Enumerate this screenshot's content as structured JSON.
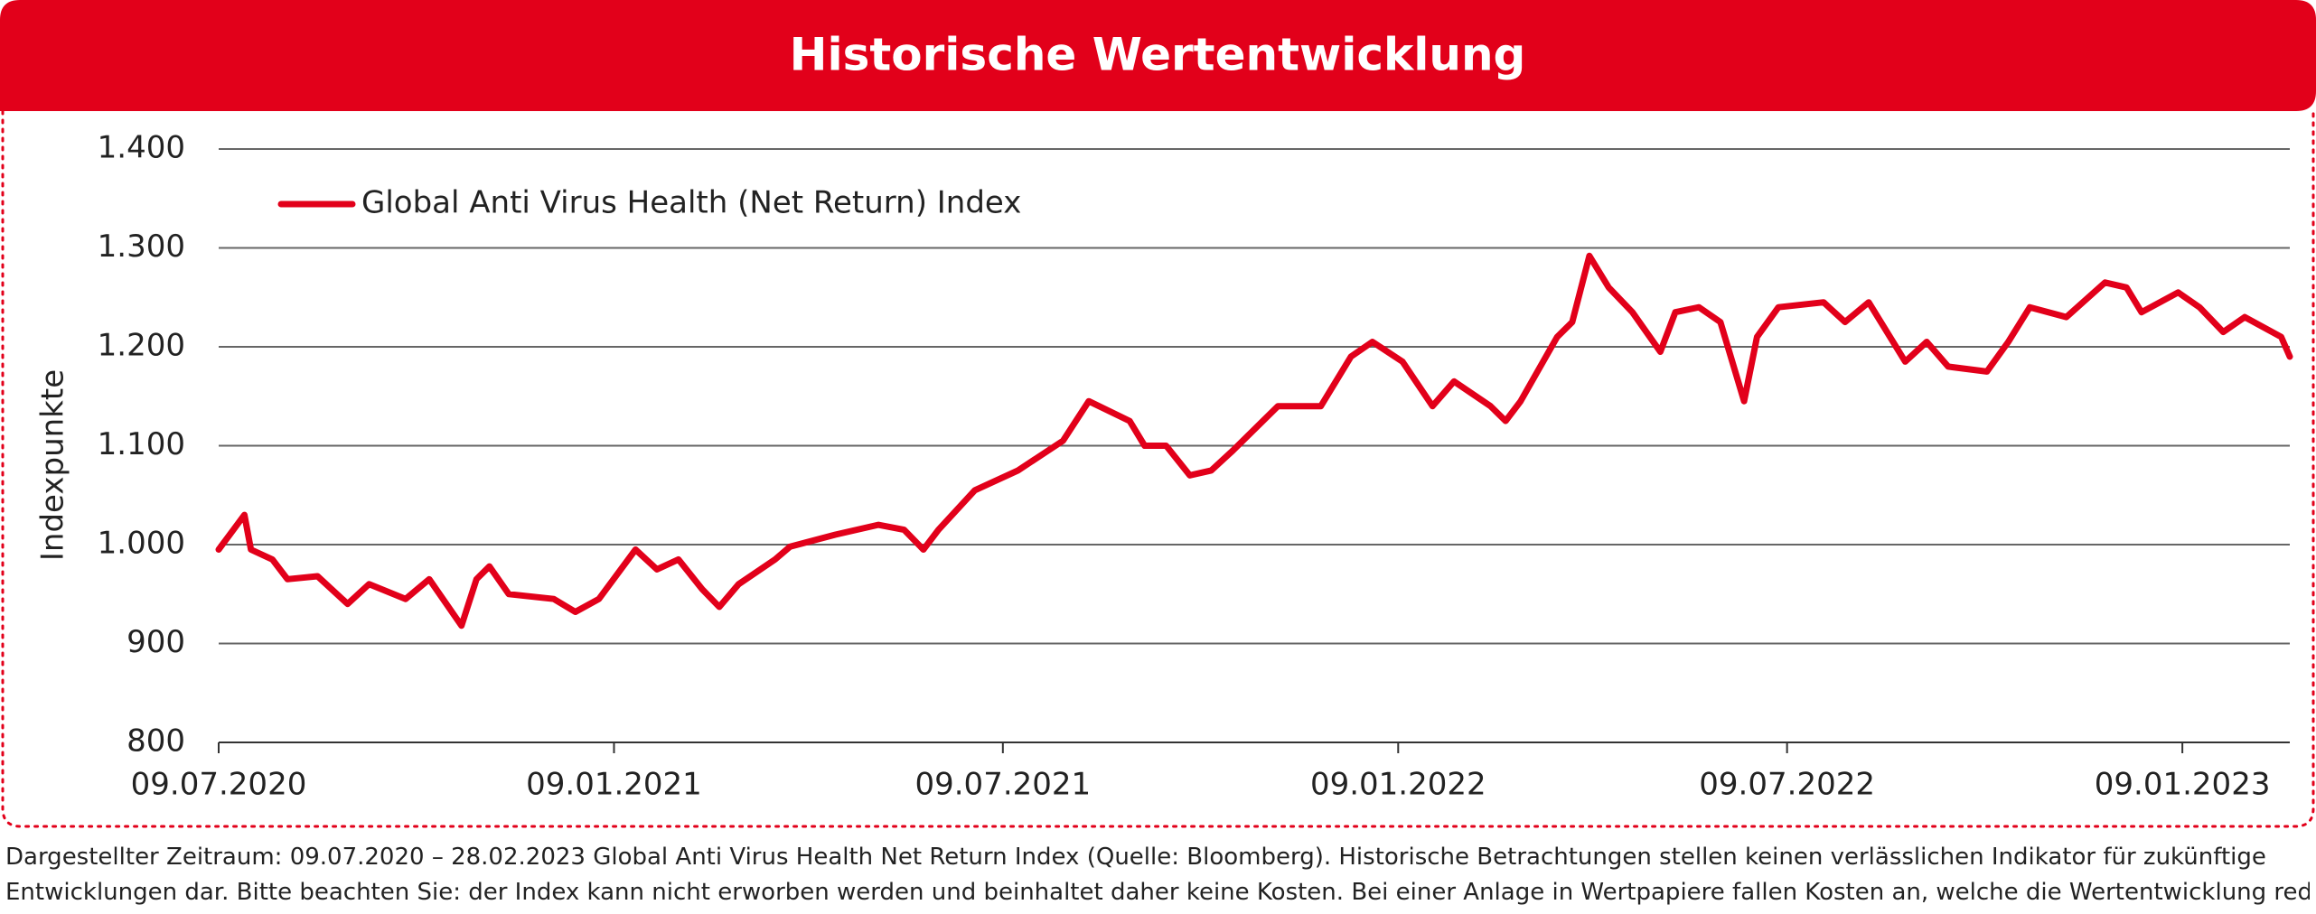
{
  "chart_data": {
    "type": "line",
    "title": "Historische Wertentwicklung",
    "y_label": "Indexpunkte",
    "footnote": [
      "Dargestellter Zeitraum: 09.07.2020 – 28.02.2023 Global Anti Virus Health Net Return Index (Quelle: Bloomberg). Historische Betrachtungen stellen keinen verlässlichen Indikator für zukünftige",
      "Entwicklungen dar. Bitte beachten Sie: der Index kann nicht erworben werden und beinhaltet daher keine Kosten. Bei einer Anlage in Wertpapiere fallen Kosten an, welche die Wertentwicklung reduzieren."
    ],
    "x": [
      "2020-07-09",
      "2020-07-21",
      "2020-07-24",
      "2020-08-03",
      "2020-08-10",
      "2020-08-24",
      "2020-09-07",
      "2020-09-17",
      "2020-10-04",
      "2020-10-15",
      "2020-10-30",
      "2020-11-06",
      "2020-11-12",
      "2020-11-21",
      "2020-12-12",
      "2020-12-22",
      "2021-01-02",
      "2021-01-19",
      "2021-01-29",
      "2021-02-08",
      "2021-02-19",
      "2021-02-27",
      "2021-03-08",
      "2021-03-25",
      "2021-04-01",
      "2021-04-22",
      "2021-05-12",
      "2021-05-24",
      "2021-06-02",
      "2021-06-09",
      "2021-06-26",
      "2021-07-16",
      "2021-08-06",
      "2021-08-18",
      "2021-09-06",
      "2021-09-13",
      "2021-09-23",
      "2021-10-04",
      "2021-10-14",
      "2021-10-24",
      "2021-11-14",
      "2021-12-04",
      "2021-12-18",
      "2021-12-28",
      "2022-01-11",
      "2022-01-25",
      "2022-02-04",
      "2022-02-21",
      "2022-02-28",
      "2022-03-07",
      "2022-03-24",
      "2022-03-31",
      "2022-04-08",
      "2022-04-17",
      "2022-04-28",
      "2022-05-11",
      "2022-05-18",
      "2022-05-29",
      "2022-06-08",
      "2022-06-19",
      "2022-06-25",
      "2022-07-05",
      "2022-07-26",
      "2022-08-05",
      "2022-08-16",
      "2022-09-02",
      "2022-09-12",
      "2022-09-22",
      "2022-10-10",
      "2022-10-20",
      "2022-10-30",
      "2022-11-16",
      "2022-12-04",
      "2022-12-14",
      "2022-12-21",
      "2023-01-07",
      "2023-01-17",
      "2023-01-28",
      "2023-02-07",
      "2023-02-24",
      "2023-02-28"
    ],
    "series": [
      {
        "name": "Global Anti Virus Health (Net Return) Index",
        "color": "#e2001a",
        "values": [
          995,
          1030,
          995,
          985,
          965,
          968,
          940,
          960,
          945,
          965,
          918,
          965,
          978,
          950,
          945,
          932,
          945,
          995,
          975,
          985,
          955,
          937,
          960,
          985,
          998,
          1010,
          1020,
          1015,
          995,
          1015,
          1055,
          1075,
          1105,
          1145,
          1125,
          1100,
          1100,
          1070,
          1075,
          1095,
          1140,
          1140,
          1190,
          1205,
          1185,
          1140,
          1165,
          1140,
          1125,
          1145,
          1210,
          1225,
          1292,
          1260,
          1235,
          1195,
          1235,
          1240,
          1225,
          1145,
          1210,
          1240,
          1245,
          1225,
          1245,
          1185,
          1205,
          1180,
          1175,
          1205,
          1240,
          1230,
          1265,
          1260,
          1235,
          1255,
          1240,
          1215,
          1230,
          1210,
          1190
        ]
      }
    ],
    "xlim": [
      "2020-07-09",
      "2023-02-28"
    ],
    "xticks": [
      {
        "value": "2020-07-09",
        "label": "09.07.2020"
      },
      {
        "value": "2021-01-09",
        "label": "09.01.2021"
      },
      {
        "value": "2021-07-09",
        "label": "09.07.2021"
      },
      {
        "value": "2022-01-09",
        "label": "09.01.2022"
      },
      {
        "value": "2022-07-09",
        "label": "09.07.2022"
      },
      {
        "value": "2023-01-09",
        "label": "09.01.2023"
      }
    ],
    "ylim": [
      800,
      1400
    ],
    "yticks": [
      800,
      {
        "value": 900,
        "label": "900"
      },
      {
        "value": 1000,
        "label": "1.000"
      },
      {
        "value": 1100,
        "label": "1.100"
      },
      {
        "value": 1200,
        "label": "1.200"
      },
      {
        "value": 1300,
        "label": "1.300"
      },
      {
        "value": 1400,
        "label": "1.400"
      }
    ],
    "grid": true,
    "legend": "upper left"
  }
}
